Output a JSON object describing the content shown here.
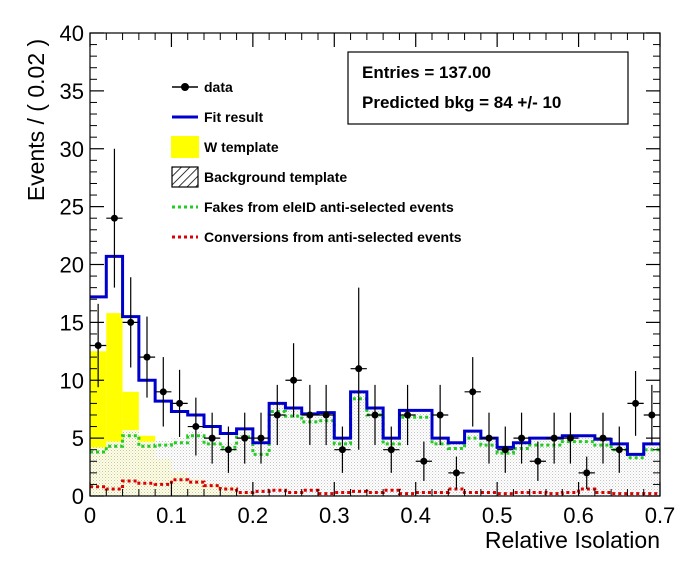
{
  "chart_data": {
    "type": "histogram",
    "xlabel": "Relative Isolation",
    "ylabel": "Events / ( 0.02 )",
    "xlim": [
      0,
      0.7
    ],
    "ylim": [
      0,
      40
    ],
    "bin_width": 0.02,
    "x_ticks": [
      "0",
      "0.1",
      "0.2",
      "0.3",
      "0.4",
      "0.5",
      "0.6",
      "0.7"
    ],
    "y_ticks": [
      "0",
      "5",
      "10",
      "15",
      "20",
      "25",
      "30",
      "35",
      "40"
    ],
    "stats": {
      "line1": "Entries =  137.00",
      "line2": "Predicted bkg = 84 +/- 10"
    },
    "legend": {
      "placement": "top-center",
      "entries": [
        {
          "key": "data",
          "label": "data"
        },
        {
          "key": "fit",
          "label": "Fit result"
        },
        {
          "key": "w",
          "label": "W template"
        },
        {
          "key": "bkg",
          "label": "Background template"
        },
        {
          "key": "fakes",
          "label": "Fakes from eleID anti-selected events"
        },
        {
          "key": "conv",
          "label": "Conversions from anti-selected events"
        }
      ]
    },
    "colors": {
      "fit": "#0000cc",
      "w_template": "#ffff00",
      "fakes": "#22cc22",
      "conversions": "#dd0000",
      "data": "#000000"
    },
    "data_points": [
      {
        "x": 0.01,
        "y": 13,
        "err": 3.6
      },
      {
        "x": 0.03,
        "y": 24,
        "err": 6.0
      },
      {
        "x": 0.05,
        "y": 15,
        "err": 3.9
      },
      {
        "x": 0.07,
        "y": 12,
        "err": 3.5
      },
      {
        "x": 0.09,
        "y": 9,
        "err": 3.0
      },
      {
        "x": 0.11,
        "y": 8,
        "err": 2.9
      },
      {
        "x": 0.13,
        "y": 6,
        "err": 2.5
      },
      {
        "x": 0.15,
        "y": 5,
        "err": 2.2
      },
      {
        "x": 0.17,
        "y": 4,
        "err": 2.0
      },
      {
        "x": 0.19,
        "y": 5,
        "err": 2.2
      },
      {
        "x": 0.21,
        "y": 5,
        "err": 2.2
      },
      {
        "x": 0.23,
        "y": 7,
        "err": 2.6
      },
      {
        "x": 0.25,
        "y": 10,
        "err": 3.2
      },
      {
        "x": 0.27,
        "y": 7,
        "err": 2.6
      },
      {
        "x": 0.29,
        "y": 7,
        "err": 2.6
      },
      {
        "x": 0.31,
        "y": 4,
        "err": 2.0
      },
      {
        "x": 0.33,
        "y": 11,
        "err": 7.0
      },
      {
        "x": 0.35,
        "y": 7,
        "err": 2.6
      },
      {
        "x": 0.37,
        "y": 4,
        "err": 2.0
      },
      {
        "x": 0.39,
        "y": 7,
        "err": 2.6
      },
      {
        "x": 0.41,
        "y": 3,
        "err": 1.7
      },
      {
        "x": 0.43,
        "y": 7,
        "err": 2.6
      },
      {
        "x": 0.45,
        "y": 2,
        "err": 1.4
      },
      {
        "x": 0.47,
        "y": 9,
        "err": 3.0
      },
      {
        "x": 0.49,
        "y": 5,
        "err": 2.2
      },
      {
        "x": 0.51,
        "y": 4,
        "err": 2.0
      },
      {
        "x": 0.53,
        "y": 5,
        "err": 2.2
      },
      {
        "x": 0.55,
        "y": 3,
        "err": 1.7
      },
      {
        "x": 0.57,
        "y": 5,
        "err": 2.2
      },
      {
        "x": 0.59,
        "y": 5,
        "err": 2.2
      },
      {
        "x": 0.61,
        "y": 2,
        "err": 1.4
      },
      {
        "x": 0.63,
        "y": 5,
        "err": 2.2
      },
      {
        "x": 0.65,
        "y": 4,
        "err": 2.0
      },
      {
        "x": 0.67,
        "y": 8,
        "err": 2.8
      },
      {
        "x": 0.69,
        "y": 7,
        "err": 2.6
      }
    ],
    "fit_result": [
      17.2,
      20.7,
      15.5,
      10.0,
      8.2,
      7.3,
      7.0,
      6.0,
      5.4,
      5.8,
      4.6,
      8.0,
      7.6,
      7.1,
      7.2,
      5.0,
      9.0,
      7.6,
      5.0,
      7.4,
      7.4,
      5.0,
      4.6,
      5.6,
      5.0,
      4.2,
      4.6,
      5.0,
      5.0,
      5.2,
      5.2,
      4.9,
      4.5,
      3.6,
      4.5
    ],
    "w_template": [
      12.5,
      15.8,
      9.0,
      5.2,
      3.2,
      2.1,
      1.5,
      1.1,
      0.8,
      0.3,
      0.1,
      0,
      0,
      0,
      0,
      0,
      0,
      0,
      0,
      0,
      0,
      0,
      0,
      0,
      0,
      0,
      0,
      0,
      0,
      0,
      0,
      0,
      0,
      0,
      0
    ],
    "background_template": [
      4.2,
      4.7,
      5.7,
      4.7,
      4.8,
      5.0,
      5.6,
      4.9,
      4.6,
      5.5,
      4.5,
      7.9,
      7.5,
      7.0,
      7.1,
      4.9,
      8.9,
      7.5,
      4.9,
      7.3,
      7.3,
      4.9,
      4.5,
      5.5,
      4.9,
      4.1,
      4.5,
      4.9,
      4.9,
      5.1,
      5.1,
      4.8,
      4.4,
      3.5,
      4.4
    ],
    "fakes": [
      3.8,
      4.3,
      5.2,
      4.3,
      4.4,
      4.6,
      5.2,
      4.5,
      4.2,
      5.1,
      3.6,
      7.3,
      6.9,
      6.4,
      6.5,
      4.5,
      8.4,
      7.0,
      4.5,
      6.8,
      6.8,
      4.5,
      4.1,
      5.0,
      4.4,
      3.7,
      4.1,
      4.4,
      4.4,
      4.7,
      4.7,
      4.4,
      4.0,
      3.3,
      4.0
    ],
    "conversions": [
      0.8,
      0.6,
      1.3,
      1.1,
      1.0,
      1.4,
      1.2,
      0.9,
      0.6,
      0.3,
      0.4,
      0.5,
      0.3,
      0.5,
      0.2,
      0.3,
      0.4,
      0.3,
      0.5,
      0.2,
      0.3,
      0.3,
      0.6,
      0.3,
      0.3,
      0.2,
      0.3,
      0.3,
      0.2,
      0.3,
      0.6,
      0.3,
      0.2,
      0.2,
      0.2
    ]
  }
}
